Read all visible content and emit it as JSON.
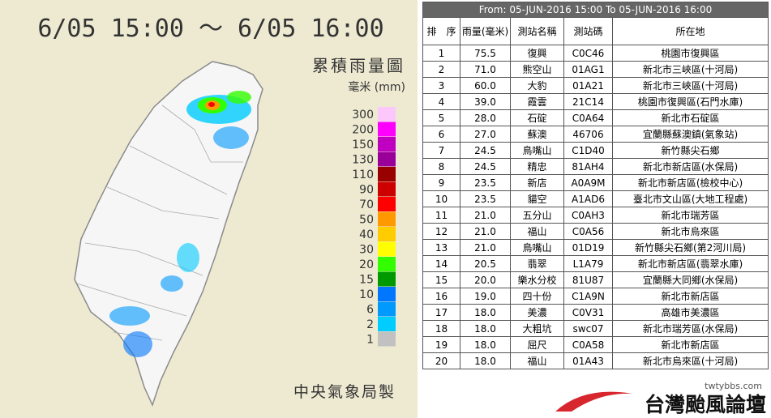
{
  "map": {
    "title": "6/05 15:00 ～ 6/05 16:00",
    "subtitle": "累積雨量圖",
    "unit": "毫米 (mm)",
    "credit": "中央氣象局製",
    "legend": [
      {
        "label": "300",
        "color": "#fcc8fc"
      },
      {
        "label": "200",
        "color": "#fe00fe"
      },
      {
        "label": "150",
        "color": "#c000c0"
      },
      {
        "label": "130",
        "color": "#990099"
      },
      {
        "label": "110",
        "color": "#990000"
      },
      {
        "label": "90",
        "color": "#cc0000"
      },
      {
        "label": "70",
        "color": "#fe0000"
      },
      {
        "label": "50",
        "color": "#fe9900"
      },
      {
        "label": "40",
        "color": "#fecc00"
      },
      {
        "label": "30",
        "color": "#fefe00"
      },
      {
        "label": "20",
        "color": "#33fe00"
      },
      {
        "label": "15",
        "color": "#009900"
      },
      {
        "label": "10",
        "color": "#0077fe"
      },
      {
        "label": "6",
        "color": "#0099fe"
      },
      {
        "label": "2",
        "color": "#00ccfe"
      },
      {
        "label": "1",
        "color": "#c1c1c1"
      }
    ]
  },
  "table": {
    "header": "From: 05-JUN-2016 15:00 To 05-JUN-2016 16:00",
    "columns": [
      "排　序",
      "雨量(毫米)",
      "測站名稱",
      "測站碼",
      "所在地"
    ],
    "rows": [
      [
        "1",
        "75.5",
        "復興",
        "C0C46",
        "桃園市復興區"
      ],
      [
        "2",
        "71.0",
        "熊空山",
        "01AG1",
        "新北市三峽區(十河局)"
      ],
      [
        "3",
        "60.0",
        "大豹",
        "01A21",
        "新北市三峽區(十河局)"
      ],
      [
        "4",
        "39.0",
        "霞雲",
        "21C14",
        "桃園市復興區(石門水庫)"
      ],
      [
        "5",
        "28.0",
        "石碇",
        "C0A64",
        "新北市石碇區"
      ],
      [
        "6",
        "27.0",
        "蘇澳",
        "46706",
        "宜蘭縣蘇澳鎮(氣象站)"
      ],
      [
        "7",
        "24.5",
        "鳥嘴山",
        "C1D40",
        "新竹縣尖石鄉"
      ],
      [
        "8",
        "24.5",
        "精忠",
        "81AH4",
        "新北市新店區(水保局)"
      ],
      [
        "9",
        "23.5",
        "新店",
        "A0A9M",
        "新北市新店區(檢校中心)"
      ],
      [
        "10",
        "23.5",
        "貓空",
        "A1AD6",
        "臺北市文山區(大地工程處)"
      ],
      [
        "11",
        "21.0",
        "五分山",
        "C0AH3",
        "新北市瑞芳區"
      ],
      [
        "12",
        "21.0",
        "福山",
        "C0A56",
        "新北市烏來區"
      ],
      [
        "13",
        "21.0",
        "鳥嘴山",
        "01D19",
        "新竹縣尖石鄉(第2河川局)"
      ],
      [
        "14",
        "20.5",
        "翡翠",
        "L1A79",
        "新北市新店區(翡翠水庫)"
      ],
      [
        "15",
        "20.0",
        "樂水分校",
        "81U87",
        "宜蘭縣大同鄉(水保局)"
      ],
      [
        "16",
        "19.0",
        "四十份",
        "C1A9N",
        "新北市新店區"
      ],
      [
        "17",
        "18.0",
        "美濃",
        "C0V31",
        "高雄市美濃區"
      ],
      [
        "18",
        "18.0",
        "大粗坑",
        "swc07",
        "新北市瑞芳區(水保局)"
      ],
      [
        "19",
        "18.0",
        "屈尺",
        "C0A58",
        "新北市新店區"
      ],
      [
        "20",
        "18.0",
        "福山",
        "01A43",
        "新北市烏來區(十河局)"
      ]
    ]
  },
  "logo": {
    "site": "twtybbs.com",
    "name": "台灣颱風論壇"
  }
}
